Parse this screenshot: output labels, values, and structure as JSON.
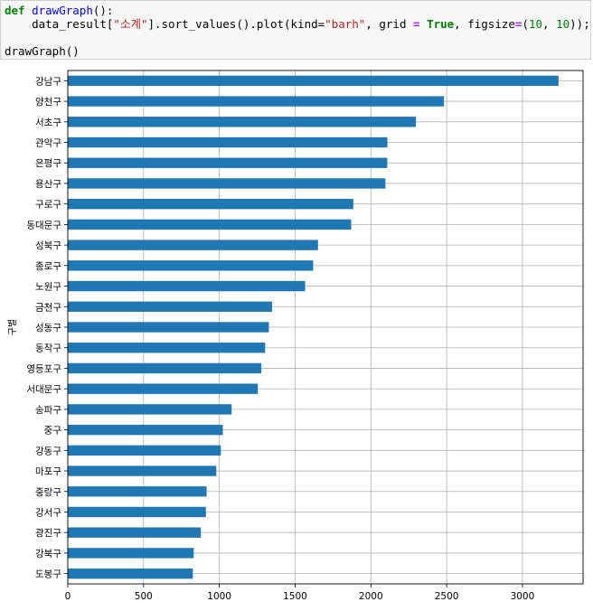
{
  "cell": {
    "line1": {
      "kw_def": "def",
      "fn_name": "drawGraph",
      "tail": "():"
    },
    "line2": {
      "a": "    data_result[",
      "s1": "\"소계\"",
      "b": "].sort_values().plot(kind=",
      "s2": "\"barh\"",
      "c": ", grid ",
      "eq1": "=",
      "sp1": " ",
      "kw_true": "True",
      "d": ", figsize",
      "eq2": "=",
      "e": "(",
      "n1": "10",
      "f": ", ",
      "n2": "10",
      "g": "));"
    },
    "line4": "drawGraph()"
  },
  "chart_data": {
    "type": "bar",
    "orientation": "horizontal",
    "title": "",
    "xlabel": "",
    "ylabel": "구별",
    "xlim": [
      0,
      3400
    ],
    "xticks": [
      0,
      500,
      1000,
      1500,
      2000,
      2500,
      3000
    ],
    "grid": true,
    "bar_color": "#1f77b4",
    "categories": [
      "강남구",
      "양천구",
      "서초구",
      "관악구",
      "은평구",
      "용산구",
      "구로구",
      "동대문구",
      "성북구",
      "종로구",
      "노원구",
      "금천구",
      "성동구",
      "동작구",
      "영등포구",
      "서대문구",
      "송파구",
      "중구",
      "강동구",
      "마포구",
      "중랑구",
      "강서구",
      "광진구",
      "강북구",
      "도봉구"
    ],
    "values": [
      3238,
      2482,
      2297,
      2109,
      2108,
      2096,
      1884,
      1870,
      1651,
      1619,
      1566,
      1348,
      1327,
      1302,
      1277,
      1254,
      1081,
      1023,
      1010,
      980,
      916,
      911,
      878,
      831,
      825
    ]
  }
}
